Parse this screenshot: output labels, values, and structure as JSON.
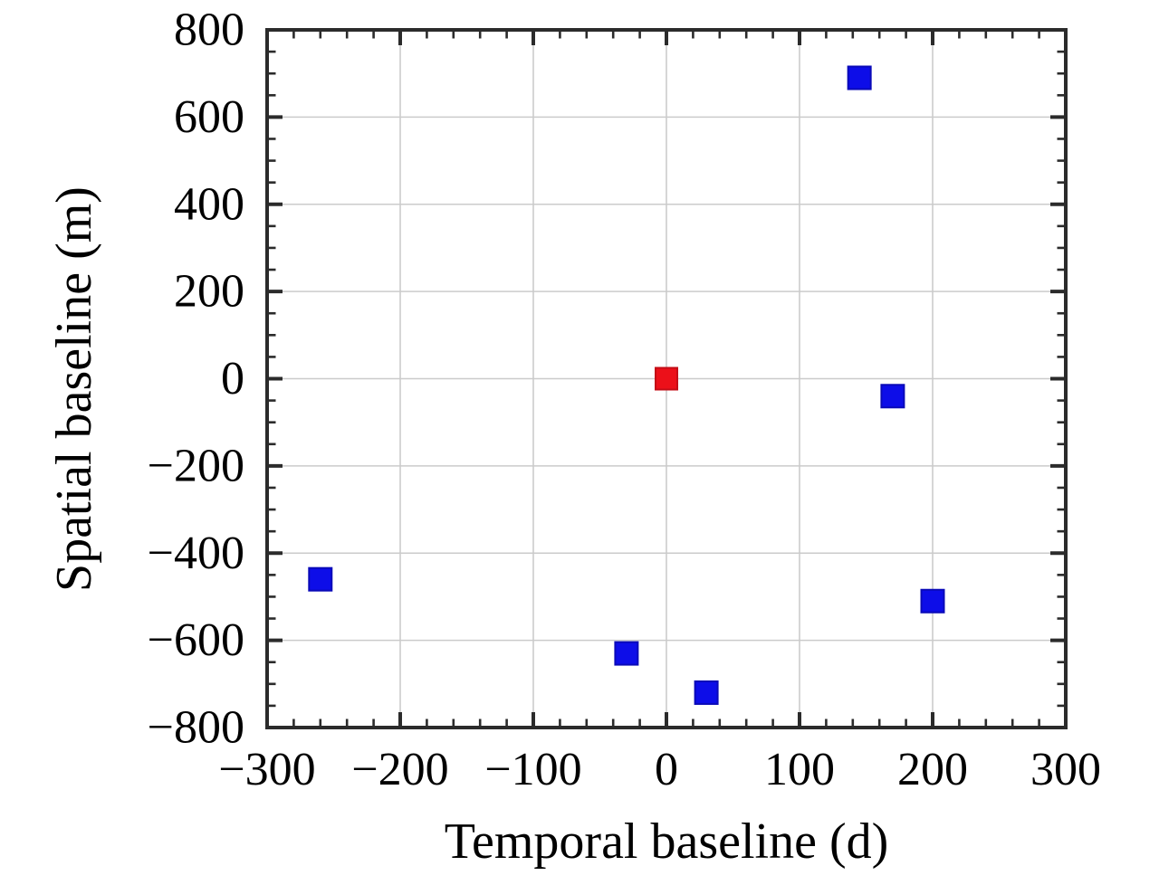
{
  "figure": {
    "background": "#ffffff"
  },
  "chart_data": {
    "type": "scatter",
    "title": "",
    "xlabel": "Temporal baseline (d)",
    "ylabel": "Spatial baseline (m)",
    "xlim": [
      -300,
      300
    ],
    "ylim": [
      -800,
      800
    ],
    "x_ticks": [
      -300,
      -200,
      -100,
      0,
      100,
      200,
      300
    ],
    "y_ticks": [
      800,
      600,
      400,
      200,
      0,
      -200,
      -400,
      -600,
      -800
    ],
    "x_major_step": 100,
    "x_minor_step": 20,
    "y_major_step": 200,
    "y_minor_step": 50,
    "grid": true,
    "legend": "none",
    "marker": "square",
    "series": [
      {
        "name": "secondary-acquisitions-blue",
        "color": "#0d0de8",
        "edge_color": "#0a0ab8",
        "points": [
          {
            "x": -260,
            "y": -460
          },
          {
            "x": -30,
            "y": -630
          },
          {
            "x": 30,
            "y": -720
          },
          {
            "x": 145,
            "y": 690
          },
          {
            "x": 170,
            "y": -40
          },
          {
            "x": 200,
            "y": -510
          }
        ]
      },
      {
        "name": "reference-acquisition-red",
        "color": "#ec1019",
        "edge_color": "#c40d16",
        "points": [
          {
            "x": 0,
            "y": 0
          }
        ]
      }
    ],
    "colors": {
      "grid": "#cbcbcb",
      "axis": "#2b2b2b",
      "text": "#000000",
      "background": "#ffffff"
    }
  }
}
